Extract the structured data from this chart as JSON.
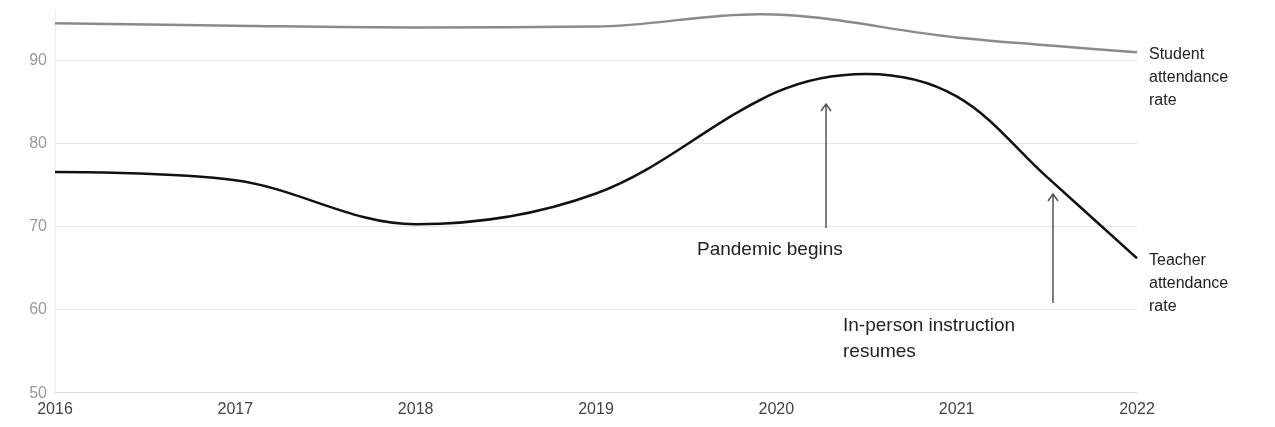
{
  "chart_data": {
    "type": "line",
    "x": [
      2016,
      2017,
      2018,
      2019,
      2020,
      2020.5,
      2021,
      2021.5,
      2022
    ],
    "series": [
      {
        "name": "Student attendance rate",
        "color": "#8a8a8a",
        "x": [
          2016,
          2017,
          2018,
          2019,
          2019.9,
          2021,
          2022
        ],
        "values": [
          94.4,
          94.1,
          93.9,
          94.0,
          95.5,
          92.7,
          90.9
        ]
      },
      {
        "name": "Teacher attendance rate",
        "color": "#111111",
        "values": [
          76.5,
          75.5,
          70.2,
          73.9,
          86.1,
          88.3,
          85.6,
          75.9,
          66.1
        ]
      }
    ],
    "xlim": [
      2016,
      2022
    ],
    "xticks": [
      2016,
      2017,
      2018,
      2019,
      2020,
      2021,
      2022
    ],
    "ylim": [
      50,
      96
    ],
    "yticks": [
      50,
      60,
      70,
      80,
      90
    ],
    "grid": "y",
    "marker": "none",
    "line_style": "solid",
    "legend": false,
    "annotations": [
      "Pandemic begins",
      "In-person instruction resumes"
    ]
  }
}
